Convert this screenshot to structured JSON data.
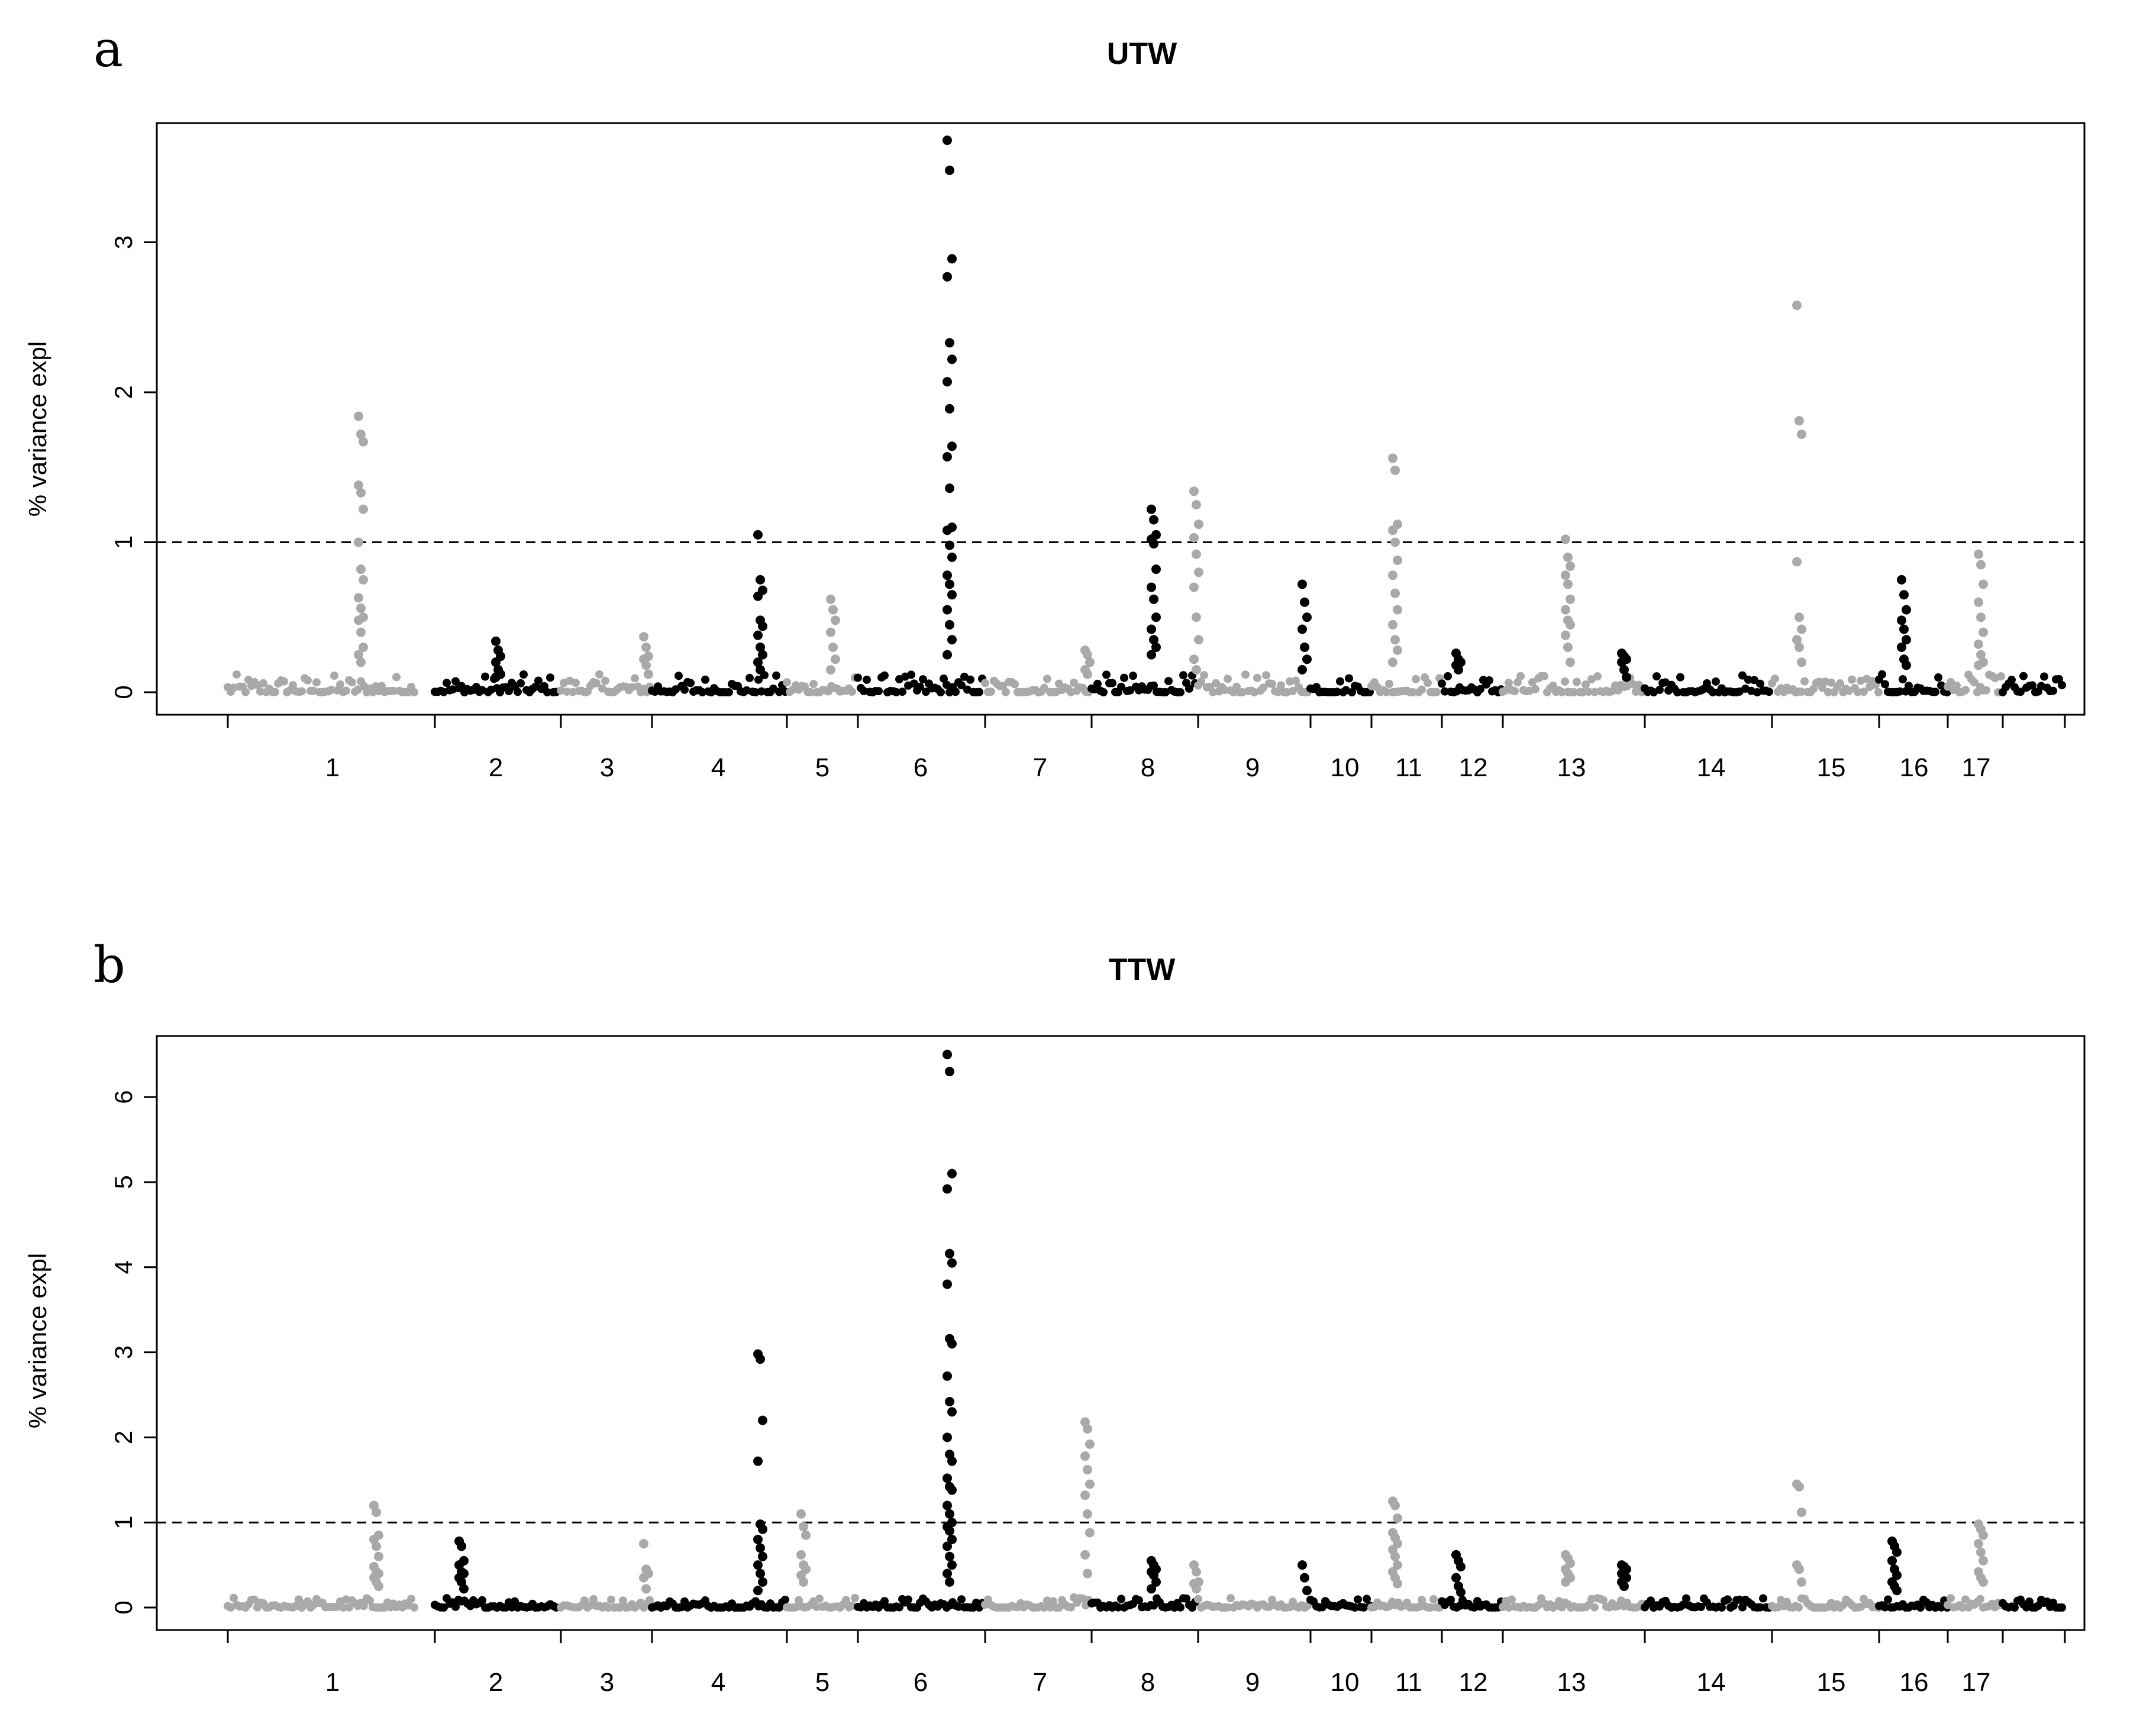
{
  "chart_data": [
    {
      "panel": "a",
      "type": "scatter",
      "title": "UTW",
      "xlabel": "",
      "ylabel": "% variance expl",
      "ylim": [
        0,
        3.75
      ],
      "yticks": [
        0,
        1,
        2,
        3
      ],
      "threshold": 1,
      "grid": false,
      "legend": "none",
      "colors": [
        "#a9a9a9",
        "#000000"
      ],
      "chromosomes": [
        "1",
        "2",
        "3",
        "4",
        "5",
        "6",
        "7",
        "8",
        "9",
        "10",
        "11",
        "12",
        "13",
        "14",
        "15",
        "16",
        "17"
      ],
      "peaks": [
        {
          "chr": "1",
          "values": [
            1.84,
            1.72,
            1.67,
            1.38,
            1.33,
            1.22,
            1.0,
            0.82,
            0.75,
            0.63,
            0.56,
            0.5,
            0.48,
            0.4,
            0.3,
            0.25,
            0.2
          ]
        },
        {
          "chr": "2",
          "values": [
            0.34,
            0.28,
            0.24,
            0.2,
            0.15,
            0.12,
            0.1
          ]
        },
        {
          "chr": "3",
          "values": [
            0.37,
            0.3,
            0.24,
            0.22,
            0.18,
            0.12
          ]
        },
        {
          "chr": "4",
          "values": [
            1.05,
            0.75,
            0.68,
            0.64,
            0.48,
            0.44,
            0.38,
            0.3,
            0.25,
            0.2,
            0.15
          ]
        },
        {
          "chr": "5",
          "values": [
            0.62,
            0.55,
            0.48,
            0.4,
            0.3,
            0.22,
            0.15
          ]
        },
        {
          "chr": "6",
          "values": [
            3.68,
            3.48,
            2.89,
            2.77,
            2.33,
            2.22,
            2.07,
            1.89,
            1.64,
            1.57,
            1.36,
            1.1,
            1.08,
            0.98,
            0.9,
            0.78,
            0.72,
            0.65,
            0.55,
            0.45,
            0.35,
            0.25
          ]
        },
        {
          "chr": "7",
          "values": [
            0.28,
            0.25,
            0.2,
            0.15,
            0.12
          ]
        },
        {
          "chr": "8",
          "values": [
            1.22,
            1.15,
            1.05,
            1.02,
            0.99,
            0.82,
            0.7,
            0.62,
            0.5,
            0.42,
            0.35,
            0.3,
            0.25
          ]
        },
        {
          "chr": "9",
          "values": [
            1.34,
            1.25,
            1.12,
            1.03,
            0.92,
            0.8,
            0.7,
            0.5,
            0.35,
            0.22,
            0.15
          ]
        },
        {
          "chr": "10",
          "values": [
            0.72,
            0.6,
            0.5,
            0.42,
            0.3,
            0.22,
            0.15
          ]
        },
        {
          "chr": "11",
          "values": [
            1.56,
            1.48,
            1.12,
            1.08,
            1.0,
            0.88,
            0.78,
            0.66,
            0.55,
            0.45,
            0.35,
            0.28,
            0.2
          ]
        },
        {
          "chr": "12",
          "values": [
            0.26,
            0.22,
            0.2,
            0.18,
            0.15
          ]
        },
        {
          "chr": "13",
          "values": [
            1.02,
            0.9,
            0.84,
            0.78,
            0.72,
            0.62,
            0.55,
            0.48,
            0.45,
            0.38,
            0.3,
            0.2
          ]
        },
        {
          "chr": "14",
          "values": [
            0.26,
            0.24,
            0.22,
            0.2,
            0.15,
            0.1
          ]
        },
        {
          "chr": "15",
          "values": [
            2.58,
            1.81,
            1.72,
            0.87,
            0.5,
            0.42,
            0.35,
            0.3,
            0.2
          ]
        },
        {
          "chr": "16",
          "values": [
            0.75,
            0.65,
            0.55,
            0.48,
            0.42,
            0.35,
            0.3,
            0.22,
            0.18
          ]
        },
        {
          "chr": "17",
          "values": [
            0.92,
            0.85,
            0.72,
            0.6,
            0.5,
            0.4,
            0.32,
            0.25,
            0.2,
            0.18
          ]
        }
      ]
    },
    {
      "panel": "b",
      "type": "scatter",
      "title": "TTW",
      "xlabel": "",
      "ylabel": "% variance expl",
      "ylim": [
        0,
        6.75
      ],
      "yticks": [
        0,
        1,
        2,
        3,
        4,
        5,
        6
      ],
      "threshold": 1,
      "grid": false,
      "legend": "none",
      "colors": [
        "#a9a9a9",
        "#000000"
      ],
      "chromosomes": [
        "1",
        "2",
        "3",
        "4",
        "5",
        "6",
        "7",
        "8",
        "9",
        "10",
        "11",
        "12",
        "13",
        "14",
        "15",
        "16",
        "17"
      ],
      "peaks": [
        {
          "chr": "1",
          "values": [
            1.2,
            1.12,
            0.85,
            0.8,
            0.72,
            0.6,
            0.48,
            0.42,
            0.4,
            0.35,
            0.3,
            0.25
          ]
        },
        {
          "chr": "2",
          "values": [
            0.78,
            0.72,
            0.55,
            0.5,
            0.42,
            0.4,
            0.35,
            0.3,
            0.22
          ]
        },
        {
          "chr": "3",
          "values": [
            0.75,
            0.45,
            0.4,
            0.35,
            0.22
          ]
        },
        {
          "chr": "4",
          "values": [
            2.98,
            2.92,
            2.2,
            1.72,
            0.98,
            0.92,
            0.8,
            0.7,
            0.6,
            0.5,
            0.4,
            0.3,
            0.2
          ]
        },
        {
          "chr": "5",
          "values": [
            1.1,
            0.95,
            0.85,
            0.62,
            0.5,
            0.45,
            0.38,
            0.3
          ]
        },
        {
          "chr": "6",
          "values": [
            6.5,
            6.3,
            5.1,
            4.92,
            4.16,
            4.05,
            3.8,
            3.16,
            3.1,
            2.72,
            2.42,
            2.3,
            2.0,
            1.8,
            1.72,
            1.52,
            1.42,
            1.38,
            1.2,
            1.1,
            1.0,
            0.95,
            0.9,
            0.8,
            0.72,
            0.6,
            0.5,
            0.4,
            0.3
          ]
        },
        {
          "chr": "7",
          "values": [
            2.18,
            2.1,
            1.92,
            1.78,
            1.62,
            1.45,
            1.32,
            1.1,
            0.88,
            0.62,
            0.4
          ]
        },
        {
          "chr": "8",
          "values": [
            0.55,
            0.5,
            0.45,
            0.42,
            0.38,
            0.3,
            0.22
          ]
        },
        {
          "chr": "9",
          "values": [
            0.5,
            0.42,
            0.3,
            0.28,
            0.22
          ]
        },
        {
          "chr": "10",
          "values": [
            0.5,
            0.35,
            0.2
          ]
        },
        {
          "chr": "11",
          "values": [
            1.25,
            1.2,
            1.05,
            0.88,
            0.82,
            0.75,
            0.68,
            0.6,
            0.5,
            0.42,
            0.35,
            0.28
          ]
        },
        {
          "chr": "12",
          "values": [
            0.62,
            0.55,
            0.48,
            0.35,
            0.25,
            0.18
          ]
        },
        {
          "chr": "13",
          "values": [
            0.62,
            0.58,
            0.52,
            0.45,
            0.4,
            0.35,
            0.3
          ]
        },
        {
          "chr": "14",
          "values": [
            0.5,
            0.48,
            0.45,
            0.4,
            0.38,
            0.35,
            0.3,
            0.25
          ]
        },
        {
          "chr": "15",
          "values": [
            1.45,
            1.42,
            1.12,
            0.5,
            0.45,
            0.3
          ]
        },
        {
          "chr": "16",
          "values": [
            0.78,
            0.72,
            0.65,
            0.55,
            0.45,
            0.38,
            0.3,
            0.25,
            0.2
          ]
        },
        {
          "chr": "17",
          "values": [
            0.98,
            0.92,
            0.85,
            0.75,
            0.65,
            0.55,
            0.42,
            0.35,
            0.3
          ]
        }
      ]
    }
  ]
}
